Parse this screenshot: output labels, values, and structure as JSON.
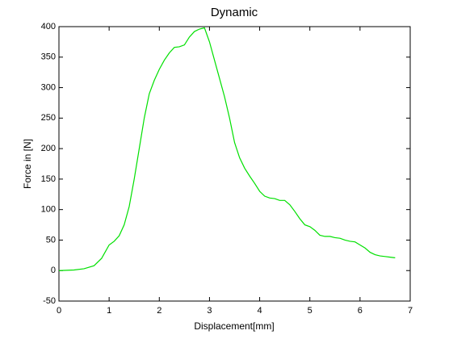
{
  "chart_data": {
    "type": "line",
    "title": "Dynamic",
    "x_label": "Displacement[mm]",
    "y_label": "Force in [N]",
    "x": [
      0,
      0.3,
      0.5,
      0.7,
      0.85,
      1.0,
      1.1,
      1.2,
      1.3,
      1.4,
      1.5,
      1.6,
      1.7,
      1.8,
      1.9,
      2.0,
      2.1,
      2.2,
      2.3,
      2.4,
      2.5,
      2.6,
      2.7,
      2.8,
      2.9,
      3.0,
      3.1,
      3.2,
      3.3,
      3.4,
      3.5,
      3.6,
      3.7,
      3.8,
      3.9,
      4.0,
      4.1,
      4.2,
      4.3,
      4.4,
      4.5,
      4.6,
      4.7,
      4.8,
      4.9,
      5.0,
      5.1,
      5.2,
      5.3,
      5.4,
      5.5,
      5.6,
      5.7,
      5.8,
      5.9,
      6.0,
      6.1,
      6.2,
      6.3,
      6.4,
      6.5,
      6.6,
      6.7
    ],
    "series": [
      {
        "color": "#00e000",
        "values": [
          0,
          1,
          3,
          8,
          20,
          42,
          48,
          57,
          75,
          105,
          150,
          200,
          250,
          290,
          312,
          330,
          345,
          357,
          366,
          367,
          370,
          383,
          392,
          396,
          398,
          375,
          345,
          315,
          285,
          250,
          210,
          185,
          168,
          155,
          143,
          130,
          122,
          119,
          118,
          115,
          115,
          108,
          97,
          85,
          75,
          72,
          66,
          58,
          56,
          56,
          54,
          53,
          50,
          48,
          47,
          42,
          37,
          30,
          26,
          24,
          23,
          22,
          21
        ]
      }
    ],
    "xlim": [
      0,
      7
    ],
    "xticks": [
      0,
      1,
      2,
      3,
      4,
      5,
      6,
      7
    ],
    "ylim": [
      -50,
      400
    ],
    "yticks": [
      -50,
      0,
      50,
      100,
      150,
      200,
      250,
      300,
      350,
      400
    ],
    "grid": false
  }
}
